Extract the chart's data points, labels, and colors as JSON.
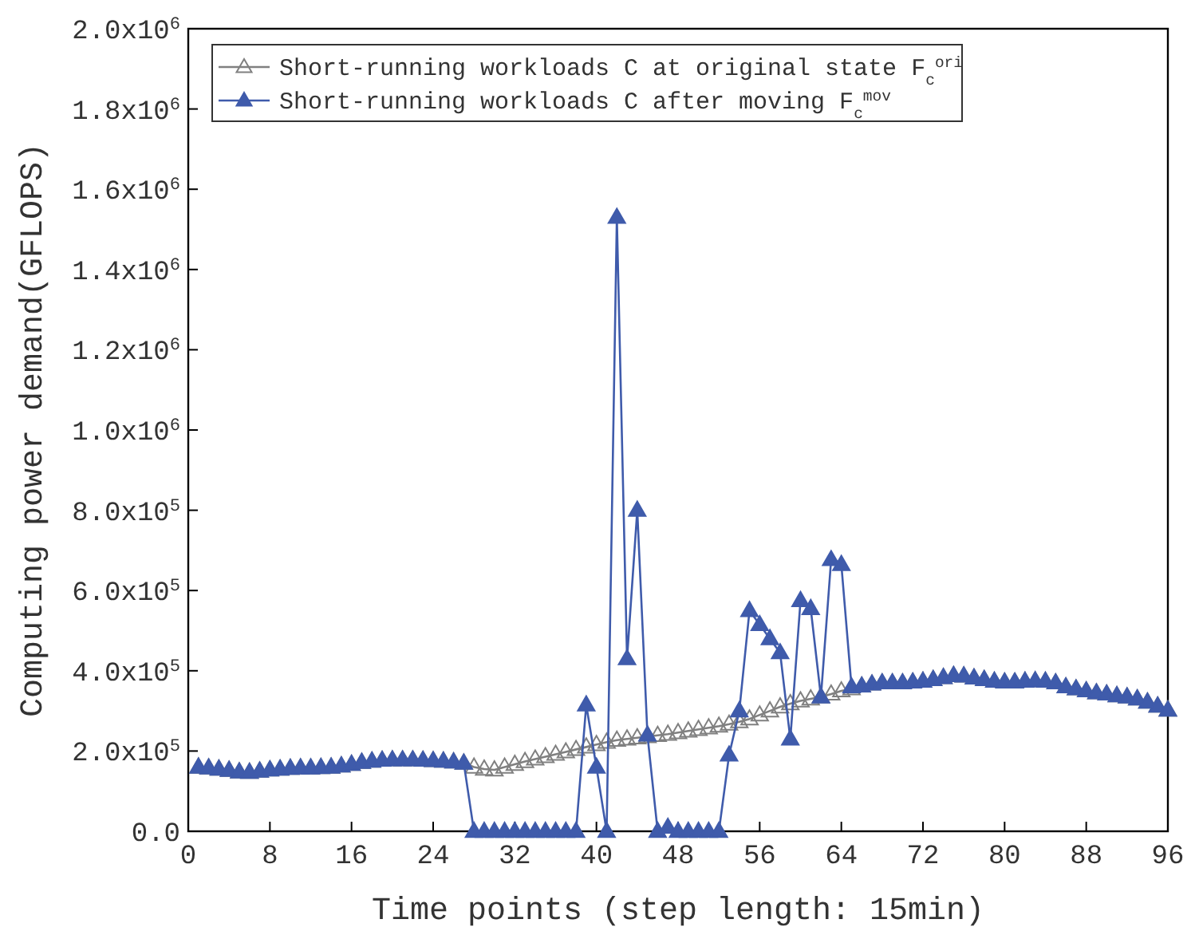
{
  "chart_data": {
    "type": "line",
    "xlabel": "Time points (step length: 15min)",
    "ylabel": "Computing power demand(GFLOPS)",
    "xlim": [
      0,
      96
    ],
    "xticks": [
      0,
      8,
      16,
      24,
      32,
      40,
      48,
      56,
      64,
      72,
      80,
      88,
      96
    ],
    "ylim": [
      0,
      2000000
    ],
    "yticks": [
      {
        "value": 0,
        "label": "0.0"
      },
      {
        "value": 200000,
        "label": "2.0x10$^{5}$"
      },
      {
        "value": 400000,
        "label": "4.0x10$^{5}$"
      },
      {
        "value": 600000,
        "label": "6.0x10$^{5}$"
      },
      {
        "value": 800000,
        "label": "8.0x10$^{5}$"
      },
      {
        "value": 1000000,
        "label": "1.0x10$^{6}$"
      },
      {
        "value": 1200000,
        "label": "1.2x10$^{6}$"
      },
      {
        "value": 1400000,
        "label": "1.4x10$^{6}$"
      },
      {
        "value": 1600000,
        "label": "1.6x10$^{6}$"
      },
      {
        "value": 1800000,
        "label": "1.8x10$^{6}$"
      },
      {
        "value": 2000000,
        "label": "2.0x10$^{6}$"
      }
    ],
    "x": [
      1,
      2,
      3,
      4,
      5,
      6,
      7,
      8,
      9,
      10,
      11,
      12,
      13,
      14,
      15,
      16,
      17,
      18,
      19,
      20,
      21,
      22,
      23,
      24,
      25,
      26,
      27,
      28,
      29,
      30,
      31,
      32,
      33,
      34,
      35,
      36,
      37,
      38,
      39,
      40,
      41,
      42,
      43,
      44,
      45,
      46,
      47,
      48,
      49,
      50,
      51,
      52,
      53,
      54,
      55,
      56,
      57,
      58,
      59,
      60,
      61,
      62,
      63,
      64,
      65,
      66,
      67,
      68,
      69,
      70,
      71,
      72,
      73,
      74,
      75,
      76,
      77,
      78,
      79,
      80,
      81,
      82,
      83,
      84,
      85,
      86,
      87,
      88,
      89,
      90,
      91,
      92,
      93,
      94,
      95,
      96
    ],
    "legend": "top left",
    "marker": "triangle",
    "line_style": "solid",
    "grid": false,
    "series": [
      {
        "name": "Short-running workloads C at original state F$_{c}$$^{ori}$",
        "color": "#808080",
        "values": [
          160000,
          158000,
          155000,
          152000,
          148000,
          147000,
          150000,
          153000,
          155000,
          157000,
          158000,
          158000,
          159000,
          160000,
          163000,
          167000,
          172000,
          175000,
          177000,
          178000,
          178000,
          178000,
          177000,
          176000,
          175000,
          173000,
          170000,
          160000,
          155000,
          153000,
          160000,
          167000,
          174000,
          180000,
          186000,
          192000,
          198000,
          204000,
          210000,
          216000,
          222000,
          227000,
          230000,
          233000,
          236000,
          239000,
          242000,
          246000,
          250000,
          254000,
          258000,
          262000,
          267000,
          273000,
          280000,
          290000,
          300000,
          310000,
          318000,
          325000,
          330000,
          335000,
          342000,
          350000,
          355000,
          362000,
          367000,
          370000,
          370000,
          370000,
          372000,
          374000,
          378000,
          383000,
          388000,
          387000,
          382000,
          378000,
          374000,
          372000,
          372000,
          374000,
          375000,
          374000,
          370000,
          360000,
          355000,
          350000,
          345000,
          342000,
          338000,
          335000,
          330000,
          322000,
          312000,
          302000
        ]
      },
      {
        "name": "Short-running workloads C after moving F$_{c}$$^{mov}$",
        "color": "#3f5bab",
        "values": [
          160000,
          158000,
          155000,
          152000,
          148000,
          147000,
          150000,
          153000,
          155000,
          157000,
          158000,
          158000,
          159000,
          160000,
          163000,
          167000,
          172000,
          175000,
          177000,
          178000,
          178000,
          178000,
          177000,
          176000,
          175000,
          173000,
          170000,
          0,
          0,
          0,
          0,
          0,
          0,
          0,
          0,
          0,
          0,
          0,
          315000,
          160000,
          0,
          1530000,
          430000,
          800000,
          240000,
          0,
          10000,
          0,
          0,
          0,
          0,
          0,
          190000,
          300000,
          550000,
          515000,
          480000,
          445000,
          230000,
          575000,
          555000,
          335000,
          677000,
          665000,
          360000,
          362000,
          367000,
          370000,
          370000,
          370000,
          372000,
          374000,
          378000,
          383000,
          388000,
          387000,
          382000,
          378000,
          374000,
          372000,
          372000,
          374000,
          375000,
          374000,
          370000,
          360000,
          355000,
          350000,
          345000,
          342000,
          338000,
          335000,
          330000,
          322000,
          312000,
          302000
        ]
      }
    ]
  }
}
